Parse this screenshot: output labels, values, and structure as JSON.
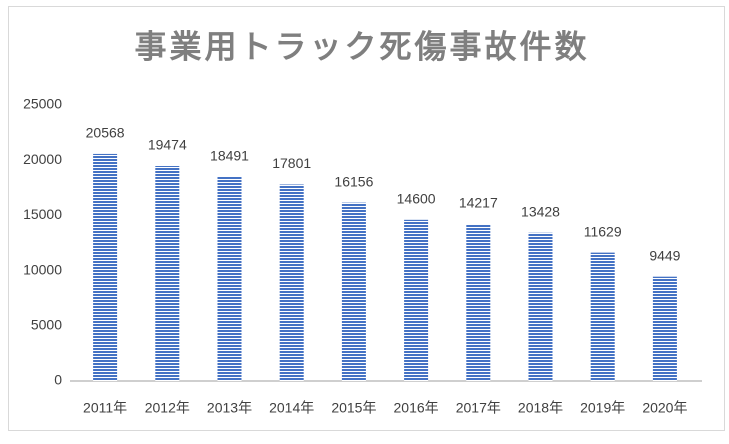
{
  "chart_data": {
    "type": "bar",
    "title": "事業用トラック死傷事故件数",
    "categories": [
      "2011年",
      "2012年",
      "2013年",
      "2014年",
      "2015年",
      "2016年",
      "2017年",
      "2018年",
      "2019年",
      "2020年"
    ],
    "values": [
      20568,
      19474,
      18491,
      17801,
      16156,
      14600,
      14217,
      13428,
      11629,
      9449
    ],
    "color": "#4472c4",
    "ylim": [
      0,
      25000
    ],
    "yticks": [
      0,
      5000,
      10000,
      15000,
      20000,
      25000
    ],
    "grid": false
  }
}
